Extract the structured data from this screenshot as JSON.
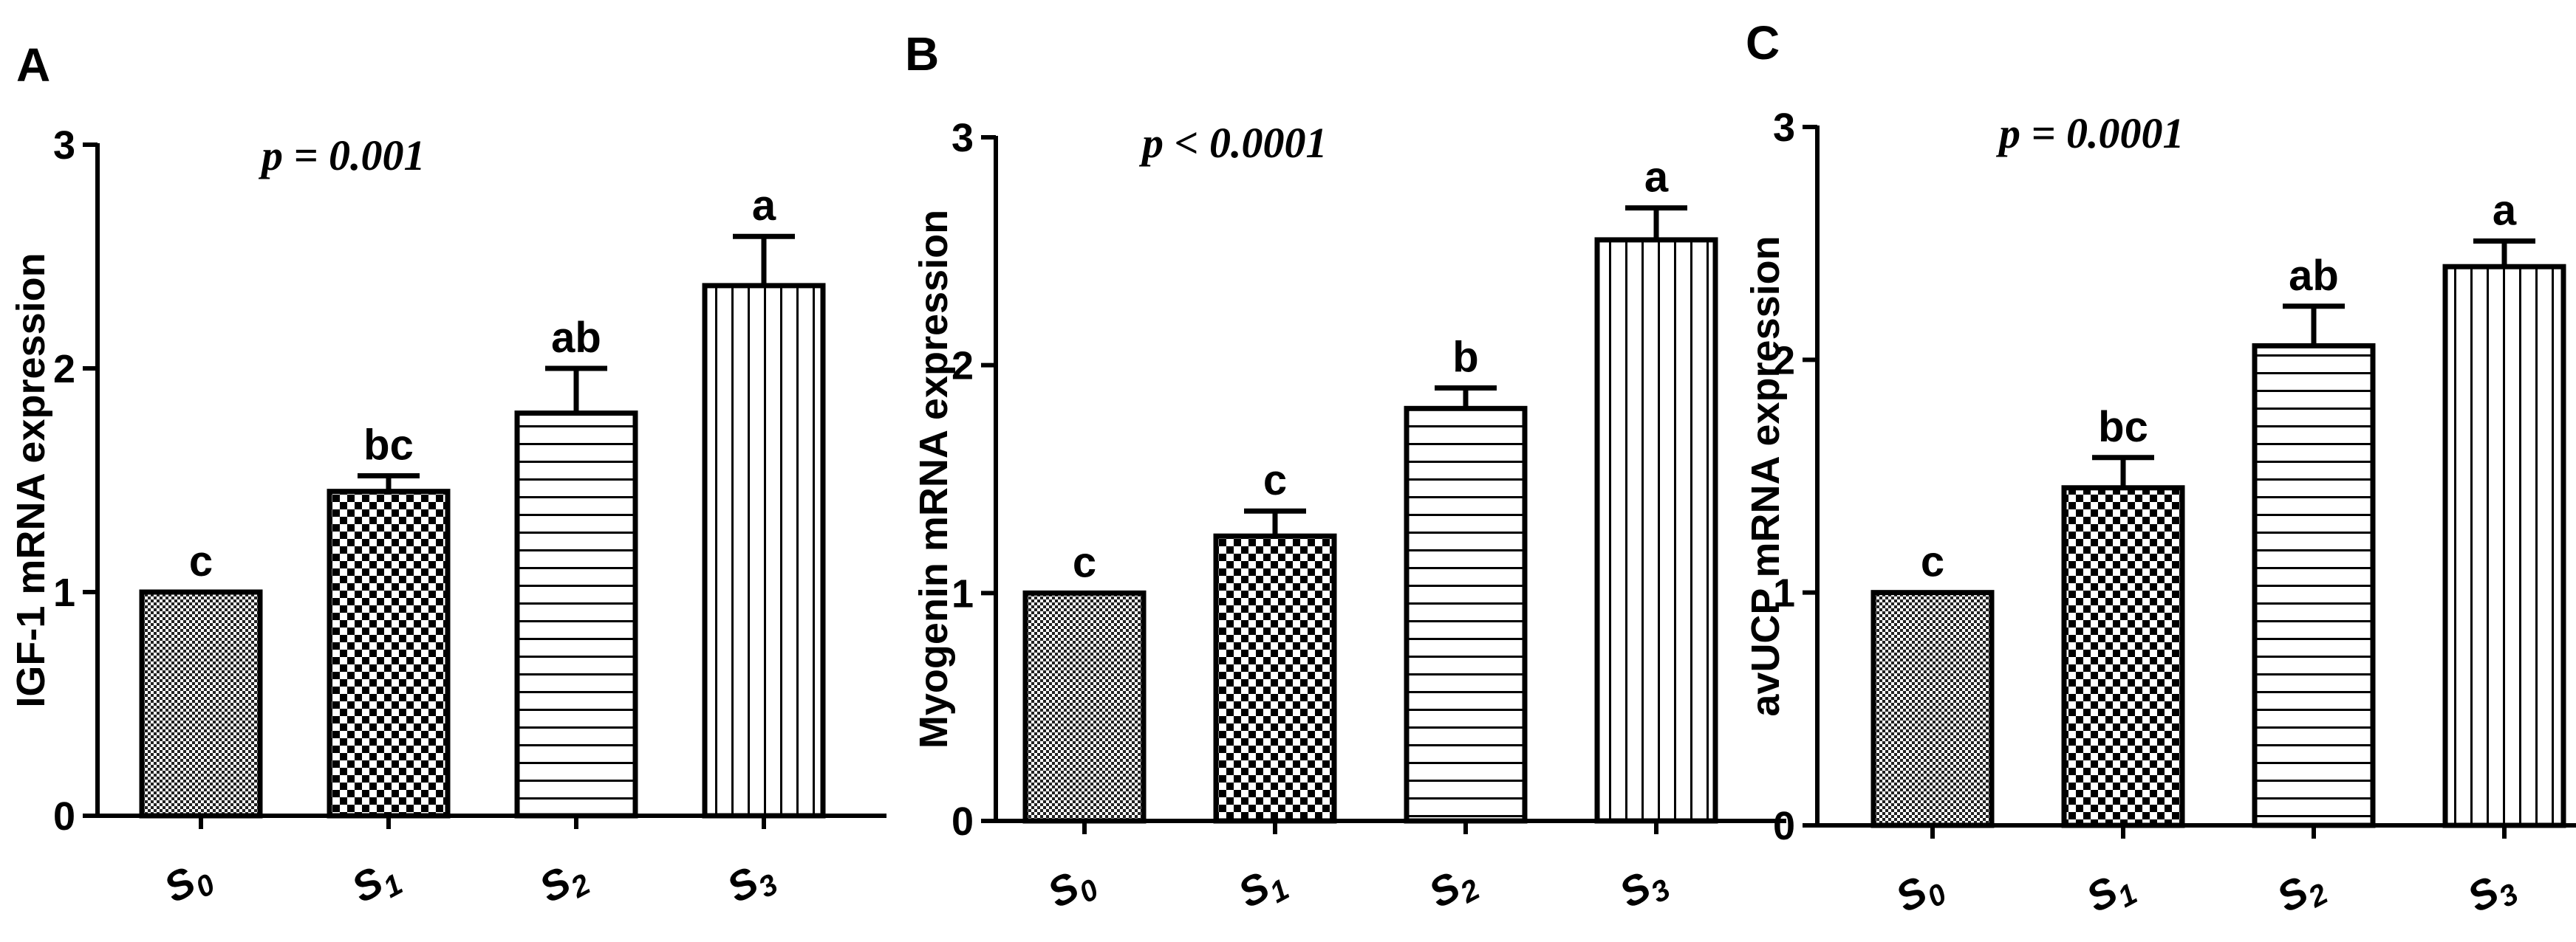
{
  "chart_data": [
    {
      "panel": "A",
      "type": "bar",
      "title": "",
      "annotation": "p = 0.001",
      "xlabel": "",
      "ylabel": "IGF-1 mRNA expression",
      "ylim": [
        0,
        3
      ],
      "yticks": [
        "0",
        "1",
        "2",
        "3"
      ],
      "categories": [
        {
          "base": "S",
          "sub": "0"
        },
        {
          "base": "S",
          "sub": "1"
        },
        {
          "base": "S",
          "sub": "2"
        },
        {
          "base": "S",
          "sub": "3"
        }
      ],
      "values": [
        1.0,
        1.45,
        1.8,
        2.37
      ],
      "errors": [
        0.0,
        0.07,
        0.2,
        0.22
      ],
      "significance": [
        "c",
        "bc",
        "ab",
        "a"
      ],
      "patterns": [
        "fine-check",
        "checker",
        "horizontal",
        "vertical"
      ]
    },
    {
      "panel": "B",
      "type": "bar",
      "title": "",
      "annotation": "p < 0.0001",
      "xlabel": "",
      "ylabel": "Myogenin mRNA expression",
      "ylim": [
        0,
        3
      ],
      "yticks": [
        "0",
        "1",
        "2",
        "3"
      ],
      "categories": [
        {
          "base": "S",
          "sub": "0"
        },
        {
          "base": "S",
          "sub": "1"
        },
        {
          "base": "S",
          "sub": "2"
        },
        {
          "base": "S",
          "sub": "3"
        }
      ],
      "values": [
        1.0,
        1.25,
        1.81,
        2.55
      ],
      "errors": [
        0.0,
        0.11,
        0.09,
        0.14
      ],
      "significance": [
        "c",
        "c",
        "b",
        "a"
      ],
      "patterns": [
        "fine-check",
        "checker",
        "horizontal",
        "vertical"
      ]
    },
    {
      "panel": "C",
      "type": "bar",
      "title": "",
      "annotation": "p = 0.0001",
      "xlabel": "",
      "ylabel": "avUCP mRNA expression",
      "ylim": [
        0,
        3
      ],
      "yticks": [
        "0",
        "1",
        "2",
        "3"
      ],
      "categories": [
        {
          "base": "S",
          "sub": "0"
        },
        {
          "base": "S",
          "sub": "1"
        },
        {
          "base": "S",
          "sub": "2"
        },
        {
          "base": "S",
          "sub": "3"
        }
      ],
      "values": [
        1.0,
        1.45,
        2.06,
        2.4
      ],
      "errors": [
        0.0,
        0.13,
        0.17,
        0.11
      ],
      "significance": [
        "c",
        "bc",
        "ab",
        "a"
      ],
      "patterns": [
        "fine-check",
        "checker",
        "horizontal",
        "vertical"
      ]
    }
  ]
}
